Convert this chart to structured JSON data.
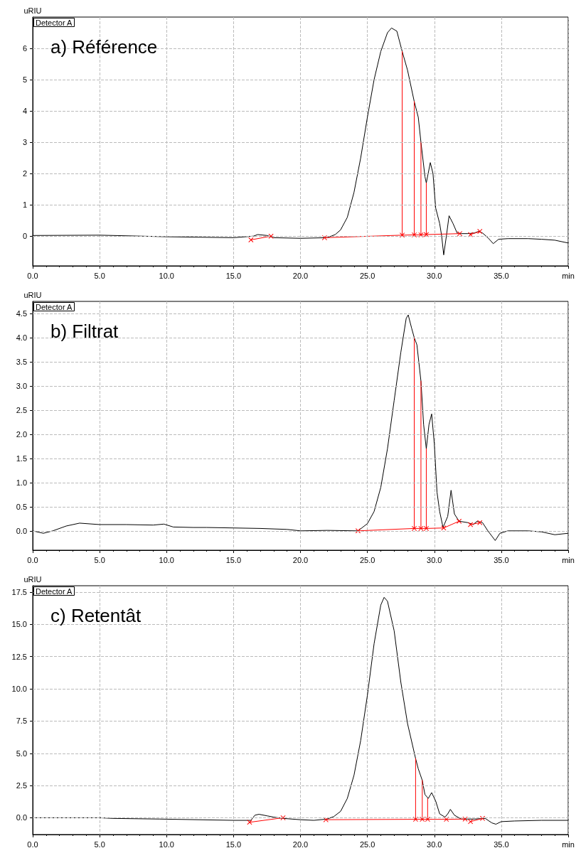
{
  "chart_data": [
    {
      "type": "line",
      "title": "a) Référence",
      "ylabel": "uRIU",
      "annotations": [
        "Detector A"
      ],
      "xlim": [
        0,
        40
      ],
      "xticks": [
        {
          "value": 0,
          "label": "0.0"
        },
        {
          "value": 5,
          "label": "5.0"
        },
        {
          "value": 10,
          "label": "10.0"
        },
        {
          "value": 15,
          "label": "15.0"
        },
        {
          "value": 20,
          "label": "20.0"
        },
        {
          "value": 25,
          "label": "25.0"
        },
        {
          "value": 30,
          "label": "30.0"
        },
        {
          "value": 35,
          "label": "35.0"
        },
        {
          "value": 40,
          "label": "min"
        }
      ],
      "ylim": [
        -0.95,
        7.0
      ],
      "yticks": [
        0,
        1,
        2,
        3,
        4,
        5,
        6
      ],
      "grid": true,
      "marker": "none",
      "line_style": "solid",
      "series": [
        {
          "color": "#000000",
          "x": [
            0,
            5,
            10,
            15,
            16.5,
            16.8,
            17.5,
            18,
            20,
            22,
            22.6,
            23,
            23.5,
            24,
            24.5,
            25,
            25.5,
            26,
            26.5,
            26.8,
            27.2,
            27.6,
            28,
            28.5,
            28.8,
            29.0,
            29.3,
            29.4,
            29.7,
            29.9,
            30.1,
            30.4,
            30.55,
            30.7,
            30.9,
            31.1,
            31.4,
            31.7,
            32,
            32.5,
            33,
            33.3,
            33.6,
            34,
            34.4,
            34.8,
            35.5,
            37,
            38,
            39,
            40
          ],
          "values": [
            0.02,
            0.03,
            -0.02,
            -0.05,
            0.0,
            0.05,
            0.02,
            -0.05,
            -0.07,
            -0.05,
            0.05,
            0.2,
            0.6,
            1.4,
            2.5,
            3.8,
            5.0,
            5.9,
            6.5,
            6.65,
            6.55,
            5.9,
            5.3,
            4.3,
            3.8,
            3.0,
            1.9,
            1.7,
            2.35,
            2.0,
            0.9,
            0.4,
            0.0,
            -0.6,
            0.0,
            0.65,
            0.4,
            0.1,
            0.08,
            0.08,
            0.1,
            0.15,
            0.1,
            -0.05,
            -0.24,
            -0.1,
            -0.08,
            -0.08,
            -0.1,
            -0.13,
            -0.22
          ]
        },
        {
          "color": "#ff0000",
          "marker": "cross",
          "x": [
            16.3,
            17.8
          ],
          "values": [
            -0.12,
            0.0
          ]
        },
        {
          "color": "#ff0000",
          "marker": "cross",
          "x": [
            21.8,
            27.6,
            28.5,
            29.0,
            29.4,
            31.9
          ],
          "values": [
            -0.05,
            0.03,
            0.04,
            0.04,
            0.05,
            0.08
          ]
        },
        {
          "color": "#ff0000",
          "marker": "cross",
          "x": [
            32.7,
            33.4
          ],
          "values": [
            0.05,
            0.15
          ]
        },
        {
          "color": "#ff0000",
          "x": [
            27.6,
            27.6
          ],
          "values": [
            0.03,
            5.9
          ]
        },
        {
          "color": "#ff0000",
          "x": [
            28.5,
            28.5
          ],
          "values": [
            0.04,
            4.3
          ]
        },
        {
          "color": "#ff0000",
          "x": [
            29.0,
            29.0
          ],
          "values": [
            0.04,
            3.0
          ]
        },
        {
          "color": "#ff0000",
          "x": [
            29.4,
            29.4
          ],
          "values": [
            0.05,
            1.7
          ]
        }
      ]
    },
    {
      "type": "line",
      "title": "b) Filtrat",
      "ylabel": "uRIU",
      "annotations": [
        "Detector A"
      ],
      "xlim": [
        0,
        40
      ],
      "xticks": [
        {
          "value": 0,
          "label": "0.0"
        },
        {
          "value": 5,
          "label": "5.0"
        },
        {
          "value": 10,
          "label": "10.0"
        },
        {
          "value": 15,
          "label": "15.0"
        },
        {
          "value": 20,
          "label": "20.0"
        },
        {
          "value": 25,
          "label": "25.0"
        },
        {
          "value": 30,
          "label": "30.0"
        },
        {
          "value": 35,
          "label": "35.0"
        },
        {
          "value": 40,
          "label": "min"
        }
      ],
      "ylim": [
        -0.4,
        4.75
      ],
      "yticks": [
        {
          "value": 0,
          "label": "0.0"
        },
        {
          "value": 0.5,
          "label": "0.5"
        },
        {
          "value": 1,
          "label": "1.0"
        },
        {
          "value": 1.5,
          "label": "1.5"
        },
        {
          "value": 2,
          "label": "2.0"
        },
        {
          "value": 2.5,
          "label": "2.5"
        },
        {
          "value": 3,
          "label": "3.0"
        },
        {
          "value": 3.5,
          "label": "3.5"
        },
        {
          "value": 4,
          "label": "4.0"
        },
        {
          "value": 4.5,
          "label": "4.5"
        }
      ],
      "grid": true,
      "marker": "none",
      "line_style": "solid",
      "series": [
        {
          "color": "#000000",
          "x": [
            0,
            0.8,
            1.5,
            2.5,
            3.5,
            5,
            7,
            9,
            9.8,
            10.5,
            12,
            13,
            15,
            17,
            19,
            20,
            22,
            24.3,
            25,
            25.5,
            26,
            26.5,
            27,
            27.5,
            27.9,
            28.05,
            28.3,
            28.5,
            28.7,
            29.0,
            29.2,
            29.4,
            29.6,
            29.8,
            30.0,
            30.2,
            30.4,
            30.65,
            31.0,
            31.25,
            31.5,
            31.85,
            32.5,
            32.9,
            33.2,
            33.6,
            34.0,
            34.55,
            34.9,
            35.5,
            37,
            38,
            39,
            40
          ],
          "values": [
            0.0,
            -0.05,
            0.0,
            0.1,
            0.16,
            0.13,
            0.13,
            0.12,
            0.14,
            0.08,
            0.07,
            0.07,
            0.06,
            0.05,
            0.03,
            0.0,
            0.01,
            0.0,
            0.15,
            0.4,
            0.9,
            1.7,
            2.7,
            3.7,
            4.4,
            4.47,
            4.2,
            4.0,
            3.85,
            3.1,
            2.2,
            1.7,
            2.2,
            2.42,
            1.8,
            0.8,
            0.4,
            0.07,
            0.3,
            0.84,
            0.35,
            0.2,
            0.17,
            0.13,
            0.2,
            0.17,
            0.0,
            -0.2,
            -0.05,
            0.0,
            0.0,
            -0.02,
            -0.08,
            -0.05
          ]
        },
        {
          "color": "#ff0000",
          "marker": "cross",
          "x": [
            24.3,
            28.5,
            29.0,
            29.4,
            30.7,
            31.85
          ],
          "values": [
            0.0,
            0.05,
            0.05,
            0.05,
            0.06,
            0.2
          ]
        },
        {
          "color": "#ff0000",
          "marker": "cross",
          "x": [
            32.7,
            33.4
          ],
          "values": [
            0.13,
            0.17
          ]
        },
        {
          "color": "#ff0000",
          "x": [
            28.5,
            28.5
          ],
          "values": [
            0.05,
            4.0
          ]
        },
        {
          "color": "#ff0000",
          "x": [
            29.0,
            29.0
          ],
          "values": [
            0.05,
            3.1
          ]
        },
        {
          "color": "#ff0000",
          "x": [
            29.4,
            29.4
          ],
          "values": [
            0.05,
            1.7
          ]
        }
      ]
    },
    {
      "type": "line",
      "title": "c) Retentât",
      "ylabel": "uRIU",
      "annotations": [
        "Detector A"
      ],
      "xlim": [
        0,
        40
      ],
      "xticks": [
        {
          "value": 0,
          "label": "0.0"
        },
        {
          "value": 5,
          "label": "5.0"
        },
        {
          "value": 10,
          "label": "10.0"
        },
        {
          "value": 15,
          "label": "15.0"
        },
        {
          "value": 20,
          "label": "20.0"
        },
        {
          "value": 25,
          "label": "25.0"
        },
        {
          "value": 30,
          "label": "30.0"
        },
        {
          "value": 35,
          "label": "35.0"
        },
        {
          "value": 40,
          "label": "min"
        }
      ],
      "ylim": [
        -1.3,
        18.0
      ],
      "yticks": [
        {
          "value": 0,
          "label": "0.0"
        },
        {
          "value": 2.5,
          "label": "2.5"
        },
        {
          "value": 5,
          "label": "5.0"
        },
        {
          "value": 7.5,
          "label": "7.5"
        },
        {
          "value": 10,
          "label": "10.0"
        },
        {
          "value": 12.5,
          "label": "12.5"
        },
        {
          "value": 15,
          "label": "15.0"
        },
        {
          "value": 17.5,
          "label": "17.5"
        }
      ],
      "grid": true,
      "marker": "none",
      "line_style": "solid",
      "series": [
        {
          "color": "#000000",
          "x": [
            0,
            5,
            6,
            9.5,
            15,
            16.3,
            16.6,
            16.9,
            17.5,
            18,
            18.7,
            20,
            21,
            22,
            22.5,
            23,
            23.5,
            24,
            24.5,
            25,
            25.5,
            26,
            26.25,
            26.5,
            27,
            27.5,
            28,
            28.6,
            28.8,
            29.1,
            29.3,
            29.55,
            29.8,
            30.1,
            30.4,
            30.8,
            31.0,
            31.2,
            31.5,
            32,
            33,
            33.8,
            34.3,
            34.6,
            35,
            36,
            38,
            40
          ],
          "values": [
            0.0,
            0.0,
            -0.05,
            -0.1,
            -0.2,
            -0.2,
            0.2,
            0.27,
            0.15,
            0.05,
            -0.05,
            -0.15,
            -0.2,
            -0.1,
            0.1,
            0.5,
            1.5,
            3.3,
            6.0,
            9.5,
            13.5,
            16.5,
            17.1,
            16.8,
            14.5,
            10.5,
            7.3,
            4.6,
            3.8,
            2.9,
            1.8,
            1.5,
            1.95,
            1.3,
            0.3,
            0.05,
            0.3,
            0.65,
            0.2,
            -0.1,
            -0.1,
            -0.05,
            -0.4,
            -0.5,
            -0.3,
            -0.25,
            -0.2,
            -0.2
          ]
        },
        {
          "color": "#ff0000",
          "marker": "cross",
          "x": [
            16.2,
            18.7
          ],
          "values": [
            -0.35,
            0.0
          ]
        },
        {
          "color": "#ff0000",
          "marker": "cross",
          "x": [
            21.9,
            28.6,
            29.1,
            29.5,
            30.9,
            32.3
          ],
          "values": [
            -0.15,
            -0.12,
            -0.12,
            -0.12,
            -0.12,
            -0.1
          ]
        },
        {
          "color": "#ff0000",
          "marker": "cross",
          "x": [
            32.7,
            33.6
          ],
          "values": [
            -0.3,
            -0.05
          ]
        },
        {
          "color": "#ff0000",
          "x": [
            28.6,
            28.6
          ],
          "values": [
            -0.12,
            4.6
          ]
        },
        {
          "color": "#ff0000",
          "x": [
            29.1,
            29.1
          ],
          "values": [
            -0.12,
            2.9
          ]
        },
        {
          "color": "#ff0000",
          "x": [
            29.5,
            29.5
          ],
          "values": [
            -0.12,
            1.5
          ]
        }
      ]
    }
  ]
}
